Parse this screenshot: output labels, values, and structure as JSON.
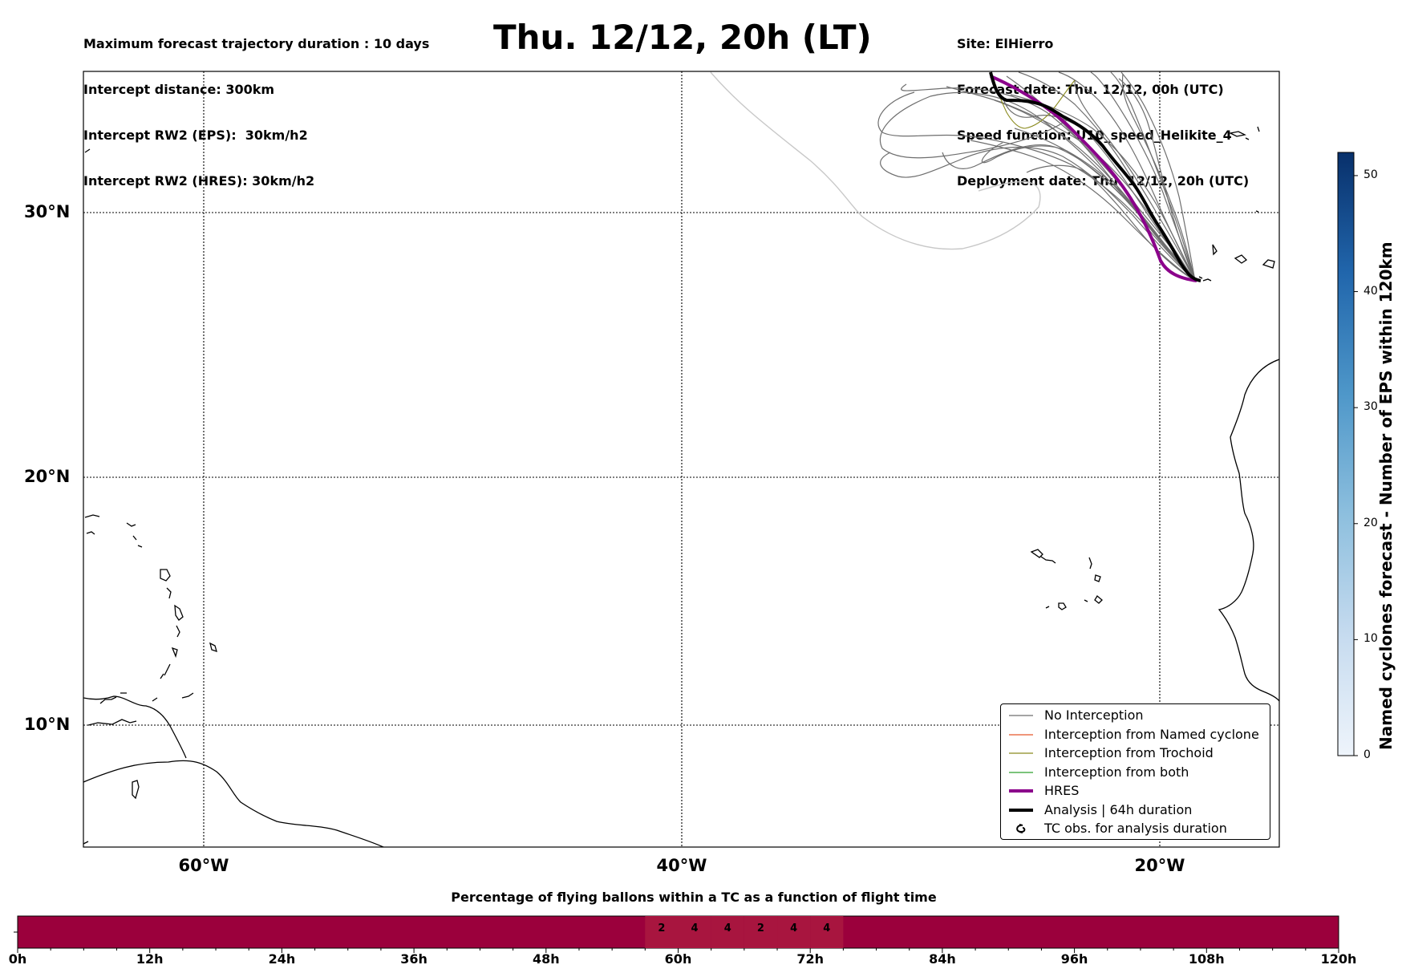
{
  "header": {
    "left_lines": [
      "Maximum forecast trajectory duration : 10 days",
      "Intercept distance: 300km",
      "Intercept RW2 (EPS):  30km/h2",
      "Intercept RW2 (HRES): 30km/h2"
    ],
    "title": "Thu. 12/12, 20h (LT)",
    "right_lines": [
      "Site: ElHierro",
      "Forecast date: Thu. 12/12, 00h (UTC)",
      "Speed function: U10_speed_Helikite_4",
      "Deployment date: Thu. 12/12, 20h (UTC)"
    ]
  },
  "map": {
    "lat_labels": [
      "30°N",
      "20°N",
      "10°N"
    ],
    "lon_labels": [
      "60°W",
      "40°W",
      "20°W"
    ],
    "gridlines": true,
    "colors": {
      "no_interception": "#6e6e6e",
      "named_cyclone": "#e8572a",
      "trochoid": "#8a8a1e",
      "both": "#2ca02c",
      "hres": "#8b008b",
      "analysis": "#000000",
      "faded_track": "#c8c8c8"
    }
  },
  "legend": {
    "items": [
      {
        "label": "No Interception",
        "style": "thin-gray"
      },
      {
        "label": "Interception from Named cyclone",
        "style": "thin-orange"
      },
      {
        "label": "Interception from Trochoid",
        "style": "thin-olive"
      },
      {
        "label": "Interception from both",
        "style": "thin-green"
      },
      {
        "label": "HRES",
        "style": "thick-purple"
      },
      {
        "label": "Analysis | 64h duration",
        "style": "thick-black"
      },
      {
        "label": "TC obs. for analysis duration",
        "style": "cyclone-icon"
      }
    ]
  },
  "colorbar": {
    "label": "Named cyclones forecast - Number of EPS within 120km",
    "ticks": [
      "0",
      "10",
      "20",
      "30",
      "40",
      "50"
    ],
    "min": 0,
    "max": 52,
    "colormap": "Blues"
  },
  "timeline": {
    "title": "Percentage of flying ballons within a TC as a function of flight time",
    "tick_labels": [
      "0h",
      "12h",
      "24h",
      "36h",
      "48h",
      "60h",
      "72h",
      "84h",
      "96h",
      "108h",
      "120h"
    ],
    "base_color": "#9b003c",
    "highlight_color": "#a8153f",
    "cells": [
      {
        "hour": 57,
        "value": "2"
      },
      {
        "hour": 60,
        "value": "4"
      },
      {
        "hour": 63,
        "value": "4"
      },
      {
        "hour": 66,
        "value": "2"
      },
      {
        "hour": 69,
        "value": "4"
      },
      {
        "hour": 72,
        "value": "4"
      }
    ]
  }
}
